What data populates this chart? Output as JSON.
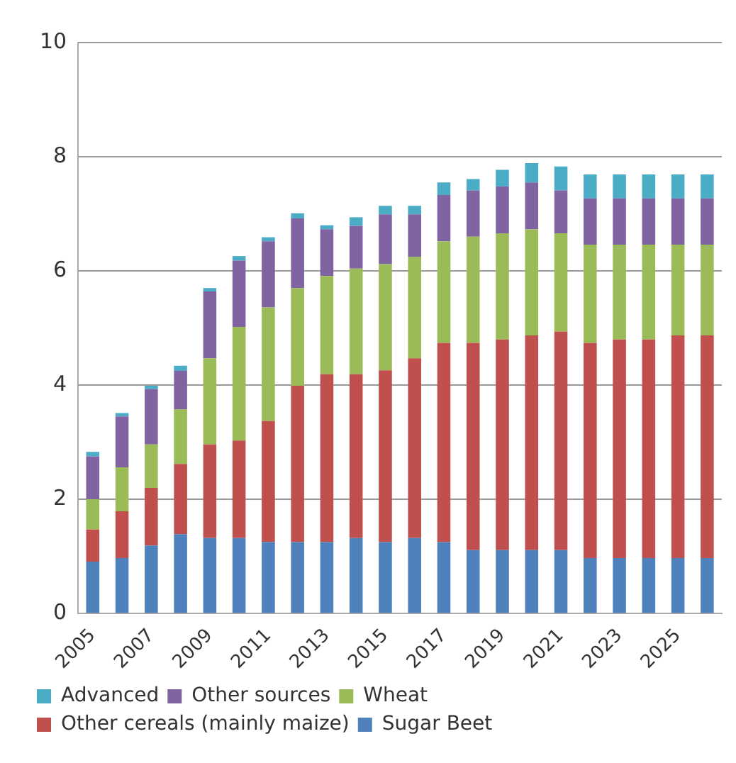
{
  "chart_data": {
    "type": "bar",
    "stacked": true,
    "categories": [
      "2005",
      null,
      "2007",
      null,
      "2009",
      null,
      "2011",
      null,
      "2013",
      null,
      "2015",
      null,
      "2017",
      null,
      "2019",
      null,
      "2021",
      null,
      "2023",
      null,
      "2025",
      null
    ],
    "series": [
      {
        "name": "Sugar Beet",
        "color": "#4f81bd",
        "values": [
          0.91,
          0.97,
          1.19,
          1.39,
          1.32,
          1.32,
          1.25,
          1.25,
          1.25,
          1.32,
          1.25,
          1.32,
          1.25,
          1.11,
          1.11,
          1.11,
          1.11,
          0.97,
          0.97,
          0.97,
          0.97,
          0.97
        ]
      },
      {
        "name": "Other cereals (mainly maize)",
        "color": "#c0504d",
        "values": [
          0.56,
          0.82,
          1.01,
          1.23,
          1.64,
          1.71,
          2.12,
          2.74,
          2.94,
          2.87,
          3.01,
          3.15,
          3.49,
          3.63,
          3.69,
          3.76,
          3.83,
          3.77,
          3.83,
          3.83,
          3.9,
          3.9
        ]
      },
      {
        "name": "Wheat",
        "color": "#9bbb59",
        "values": [
          0.53,
          0.77,
          0.76,
          0.96,
          1.51,
          1.99,
          1.99,
          1.71,
          1.72,
          1.85,
          1.86,
          1.78,
          1.78,
          1.86,
          1.86,
          1.86,
          1.72,
          1.72,
          1.66,
          1.66,
          1.59,
          1.59
        ]
      },
      {
        "name": "Other sources",
        "color": "#8064a2",
        "values": [
          0.75,
          0.89,
          0.97,
          0.67,
          1.17,
          1.16,
          1.16,
          1.22,
          0.82,
          0.75,
          0.87,
          0.74,
          0.81,
          0.81,
          0.82,
          0.82,
          0.75,
          0.81,
          0.81,
          0.81,
          0.81,
          0.81
        ]
      },
      {
        "name": "Advanced",
        "color": "#4bacc6",
        "values": [
          0.08,
          0.06,
          0.06,
          0.09,
          0.06,
          0.08,
          0.07,
          0.09,
          0.07,
          0.15,
          0.15,
          0.15,
          0.22,
          0.2,
          0.29,
          0.34,
          0.42,
          0.42,
          0.42,
          0.42,
          0.42,
          0.42
        ]
      }
    ],
    "ylim": [
      0,
      10
    ],
    "yticks": [
      0,
      2,
      4,
      6,
      8,
      10
    ],
    "grid": "y",
    "legend": "bottom"
  }
}
